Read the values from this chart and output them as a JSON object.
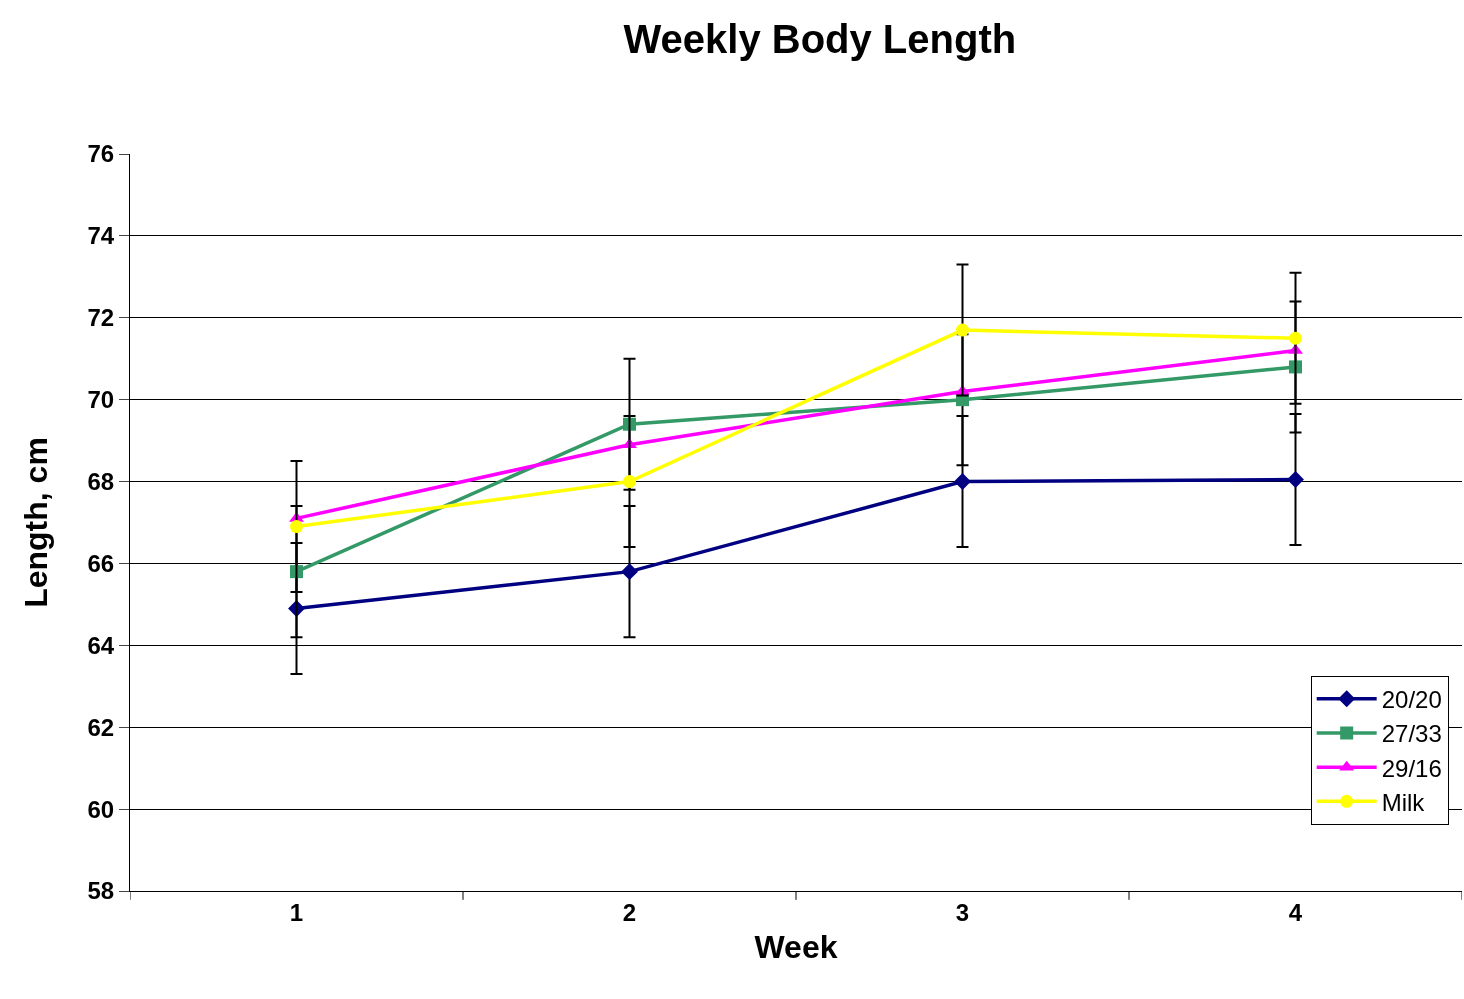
{
  "chart_data": {
    "type": "line",
    "title": "Weekly Body Length",
    "xlabel": "Week",
    "ylabel": "Length, cm",
    "categories": [
      "1",
      "2",
      "3",
      "4"
    ],
    "series": [
      {
        "name": "20/20",
        "color": "#000080",
        "marker": "diamond",
        "values": [
          64.9,
          65.8,
          68.0,
          68.05
        ],
        "errors": [
          1.6,
          1.6,
          1.6,
          1.6
        ]
      },
      {
        "name": "27/33",
        "color": "#339966",
        "marker": "square",
        "values": [
          65.8,
          69.4,
          70.0,
          70.8
        ],
        "errors": [
          1.6,
          1.6,
          1.6,
          1.6
        ]
      },
      {
        "name": "29/16",
        "color": "#ff00ff",
        "marker": "triangle",
        "values": [
          67.1,
          68.9,
          70.2,
          71.2
        ]
      },
      {
        "name": "Milk",
        "color": "#ffff00",
        "marker": "circle",
        "values": [
          66.9,
          68.0,
          71.7,
          71.5
        ],
        "errors": [
          1.6,
          1.6,
          1.6,
          1.6
        ]
      }
    ],
    "ylim": [
      58,
      76
    ],
    "yticks": [
      58,
      60,
      62,
      64,
      66,
      68,
      70,
      72,
      74,
      76
    ],
    "grid": "y",
    "legend": "bottom right",
    "line_style": "solid"
  }
}
